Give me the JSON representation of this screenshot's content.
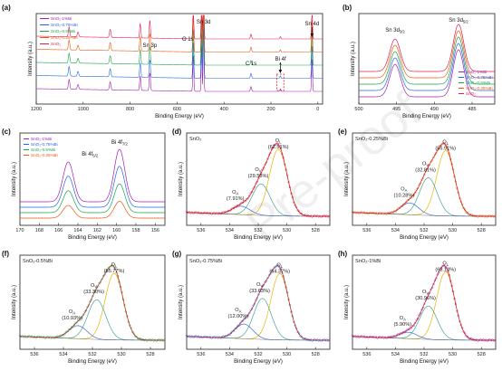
{
  "watermark": "Pre-proof",
  "chart_data": [
    {
      "id": "a",
      "panel": "(a)",
      "type": "line",
      "xlabel": "Binding Energy (eV)",
      "ylabel": "Intensity (a.u.)",
      "xlim": [
        1200,
        -20
      ],
      "xticks": [
        1200,
        1000,
        800,
        600,
        400,
        200,
        0
      ],
      "legend_position": "top-left",
      "series": [
        {
          "name": "SnO₂-1%Bi",
          "color": "#a21caf"
        },
        {
          "name": "SnO₂-0.75%Bi",
          "color": "#2563eb"
        },
        {
          "name": "SnO₂-0.5%Bi",
          "color": "#16a34a"
        },
        {
          "name": "SnO₂-0.25%Bi",
          "color": "#ea580c"
        },
        {
          "name": "SnO₂",
          "color": "#e11d48"
        }
      ],
      "peaks": [
        {
          "label": "Sn 3d",
          "x": 487
        },
        {
          "label": "Sn 3p",
          "x": 716
        },
        {
          "label": "O 1s",
          "x": 531
        },
        {
          "label": "C 1s",
          "x": 285
        },
        {
          "label": "Bi 4f",
          "x": 159
        },
        {
          "label": "Sn 4d",
          "x": 25
        }
      ]
    },
    {
      "id": "b",
      "panel": "(b)",
      "type": "line",
      "xlabel": "Binding Energy (eV)",
      "ylabel": "Intensity (a.u.)",
      "xlim": [
        500,
        482
      ],
      "xticks": [
        500,
        495,
        490,
        485
      ],
      "legend_position": "bottom-right",
      "series": [
        {
          "name": "SnO₂-1%Bi",
          "color": "#a21caf"
        },
        {
          "name": "SnO₂-0.75%Bi",
          "color": "#2563eb"
        },
        {
          "name": "SnO₂-0.5%Bi",
          "color": "#16a34a"
        },
        {
          "name": "SnO₂-0.25%Bi",
          "color": "#ea580c"
        },
        {
          "name": "SnO₂",
          "color": "#e11d48"
        }
      ],
      "peaks": [
        {
          "label": "Sn 3d",
          "sub": "3/2",
          "x": 495.2
        },
        {
          "label": "Sn 3d",
          "sub": "5/2",
          "x": 486.8
        }
      ]
    },
    {
      "id": "c",
      "panel": "(c)",
      "type": "line",
      "xlabel": "Binding Energy (eV)",
      "ylabel": "Intensity (a.u.)",
      "xlim": [
        170,
        155
      ],
      "xticks": [
        170,
        168,
        166,
        164,
        162,
        160,
        158,
        156
      ],
      "legend_position": "top-left",
      "series": [
        {
          "name": "SnO₂-1%Bi",
          "color": "#a21caf"
        },
        {
          "name": "SnO₂-0.75%Bi",
          "color": "#2563eb"
        },
        {
          "name": "SnO₂-0.5%Bi",
          "color": "#16a34a"
        },
        {
          "name": "SnO₂-0.25%Bi",
          "color": "#ea580c"
        }
      ],
      "peaks": [
        {
          "label": "Bi 4f",
          "sub": "5/2",
          "x": 165.0
        },
        {
          "label": "Bi 4f",
          "sub": "7/2",
          "x": 159.7
        }
      ]
    },
    {
      "id": "d",
      "panel": "(d)",
      "sample": "SnO₂",
      "type": "line",
      "xlabel": "Binding Energy (eV)",
      "ylabel": "Intensity (a.u.)",
      "xlim": [
        537,
        527
      ],
      "xticks": [
        536,
        534,
        532,
        530,
        528
      ],
      "data_color": "#e11d48",
      "components": [
        {
          "label": "O",
          "sub": "L",
          "pct": "(62.51%)",
          "center": 530.6,
          "frac": 0.6251,
          "color": "#e9b400"
        },
        {
          "label": "O",
          "sub": "V",
          "pct": "(29.58%)",
          "center": 531.8,
          "frac": 0.2958,
          "color": "#49a39a"
        },
        {
          "label": "O",
          "sub": "A",
          "pct": "(7.91%)",
          "center": 533.2,
          "frac": 0.0791,
          "color": "#3b6fd4"
        }
      ]
    },
    {
      "id": "e",
      "panel": "(e)",
      "sample": "SnO₂-0.25%Bi",
      "type": "line",
      "xlabel": "Binding Energy (eV)",
      "ylabel": "Intensity (a.u.)",
      "xlim": [
        537,
        527
      ],
      "xticks": [
        536,
        534,
        532,
        530,
        528
      ],
      "data_color": "#ea580c",
      "components": [
        {
          "label": "O",
          "sub": "L",
          "pct": "(56.91%)",
          "center": 530.5,
          "frac": 0.5691,
          "color": "#e9b400"
        },
        {
          "label": "O",
          "sub": "V",
          "pct": "(32.81%)",
          "center": 531.7,
          "frac": 0.3281,
          "color": "#49a39a"
        },
        {
          "label": "O",
          "sub": "A",
          "pct": "(10.28%)",
          "center": 533.0,
          "frac": 0.1028,
          "color": "#3b6fd4"
        }
      ]
    },
    {
      "id": "f",
      "panel": "(f)",
      "sample": "SnO₂-0.5%Bi",
      "type": "line",
      "xlabel": "Binding Energy (eV)",
      "ylabel": "Intensity (a.u.)",
      "xlim": [
        537,
        527
      ],
      "xticks": [
        536,
        534,
        532,
        530,
        528
      ],
      "data_color": "#16a34a",
      "components": [
        {
          "label": "O",
          "sub": "L",
          "pct": "(55.77%)",
          "center": 530.5,
          "frac": 0.5577,
          "color": "#e9b400"
        },
        {
          "label": "O",
          "sub": "V",
          "pct": "(33.30%)",
          "center": 531.7,
          "frac": 0.333,
          "color": "#49a39a"
        },
        {
          "label": "O",
          "sub": "A",
          "pct": "(10.93%)",
          "center": 533.0,
          "frac": 0.1093,
          "color": "#3b6fd4"
        }
      ]
    },
    {
      "id": "g",
      "panel": "(g)",
      "sample": "SnO₂-0.75%Bi",
      "type": "line",
      "xlabel": "Binding Energy (eV)",
      "ylabel": "Intensity (a.u.)",
      "xlim": [
        537,
        527
      ],
      "xticks": [
        536,
        534,
        532,
        530,
        528
      ],
      "data_color": "#2563eb",
      "components": [
        {
          "label": "O",
          "sub": "L",
          "pct": "(54.37%)",
          "center": 530.5,
          "frac": 0.5437,
          "color": "#e9b400"
        },
        {
          "label": "O",
          "sub": "V",
          "pct": "(33.63%)",
          "center": 531.7,
          "frac": 0.3363,
          "color": "#49a39a"
        },
        {
          "label": "O",
          "sub": "A",
          "pct": "(12.00%)",
          "center": 533.0,
          "frac": 0.12,
          "color": "#3b6fd4"
        }
      ]
    },
    {
      "id": "h",
      "panel": "(h)",
      "sample": "SnO₂-1%Bi",
      "type": "line",
      "xlabel": "Binding Energy (eV)",
      "ylabel": "Intensity (a.u.)",
      "xlim": [
        537,
        527
      ],
      "xticks": [
        536,
        534,
        532,
        530,
        528
      ],
      "data_color": "#a21caf",
      "components": [
        {
          "label": "O",
          "sub": "L",
          "pct": "(63.14%)",
          "center": 530.5,
          "frac": 0.6314,
          "color": "#e9b400"
        },
        {
          "label": "O",
          "sub": "V",
          "pct": "(30.96%)",
          "center": 531.7,
          "frac": 0.3096,
          "color": "#49a39a"
        },
        {
          "label": "O",
          "sub": "A",
          "pct": "(5.90%)",
          "center": 533.1,
          "frac": 0.059,
          "color": "#3b6fd4"
        }
      ]
    }
  ]
}
